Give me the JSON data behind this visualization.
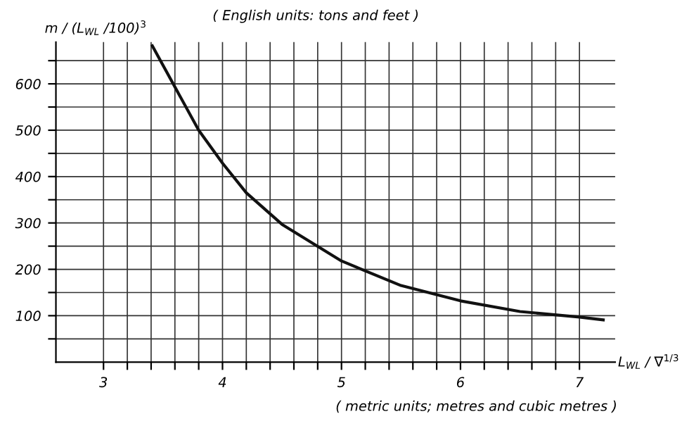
{
  "chart_data": {
    "type": "line",
    "ylabel": "m / (L$_{WL}$ /100)$^{3}$",
    "xlabel": "L$_{WL}$ / ∇$^{1/3}$",
    "annotations": [
      "( English units: tons and feet )",
      "( metric units; metres and cubic metres )"
    ],
    "x": [
      3.41,
      3.8,
      4.0,
      4.2,
      4.5,
      5.0,
      5.5,
      6.0,
      6.5,
      7.0,
      7.2
    ],
    "series": [
      {
        "color": "#111111",
        "values": [
          682,
          500,
          429,
          365,
          297,
          218,
          165,
          132,
          109,
          97,
          91
        ]
      }
    ],
    "xlim": [
      2.6,
      7.3
    ],
    "ylim": [
      0,
      690
    ],
    "xticks": [
      3,
      {
        "value": 3.2,
        "label": null
      },
      {
        "value": 3.4,
        "label": null
      },
      {
        "value": 3.6,
        "label": null
      },
      {
        "value": 3.8,
        "label": null
      },
      4,
      {
        "value": 4.2,
        "label": null
      },
      {
        "value": 4.4,
        "label": null
      },
      {
        "value": 4.6,
        "label": null
      },
      {
        "value": 4.8,
        "label": null
      },
      5,
      {
        "value": 5.2,
        "label": null
      },
      {
        "value": 5.4,
        "label": null
      },
      {
        "value": 5.6,
        "label": null
      },
      {
        "value": 5.8,
        "label": null
      },
      6,
      {
        "value": 6.2,
        "label": null
      },
      {
        "value": 6.4,
        "label": null
      },
      {
        "value": 6.6,
        "label": null
      },
      {
        "value": 6.8,
        "label": null
      },
      7
    ],
    "yticks": [
      {
        "value": 50,
        "label": null
      },
      100,
      {
        "value": 150,
        "label": null
      },
      200,
      {
        "value": 250,
        "label": null
      },
      300,
      {
        "value": 350,
        "label": null
      },
      400,
      {
        "value": 450,
        "label": null
      },
      500,
      {
        "value": 550,
        "label": null
      },
      600,
      {
        "value": 650,
        "label": null
      }
    ],
    "grid": true,
    "marker": "none",
    "line_style": "solid",
    "legend": false
  }
}
